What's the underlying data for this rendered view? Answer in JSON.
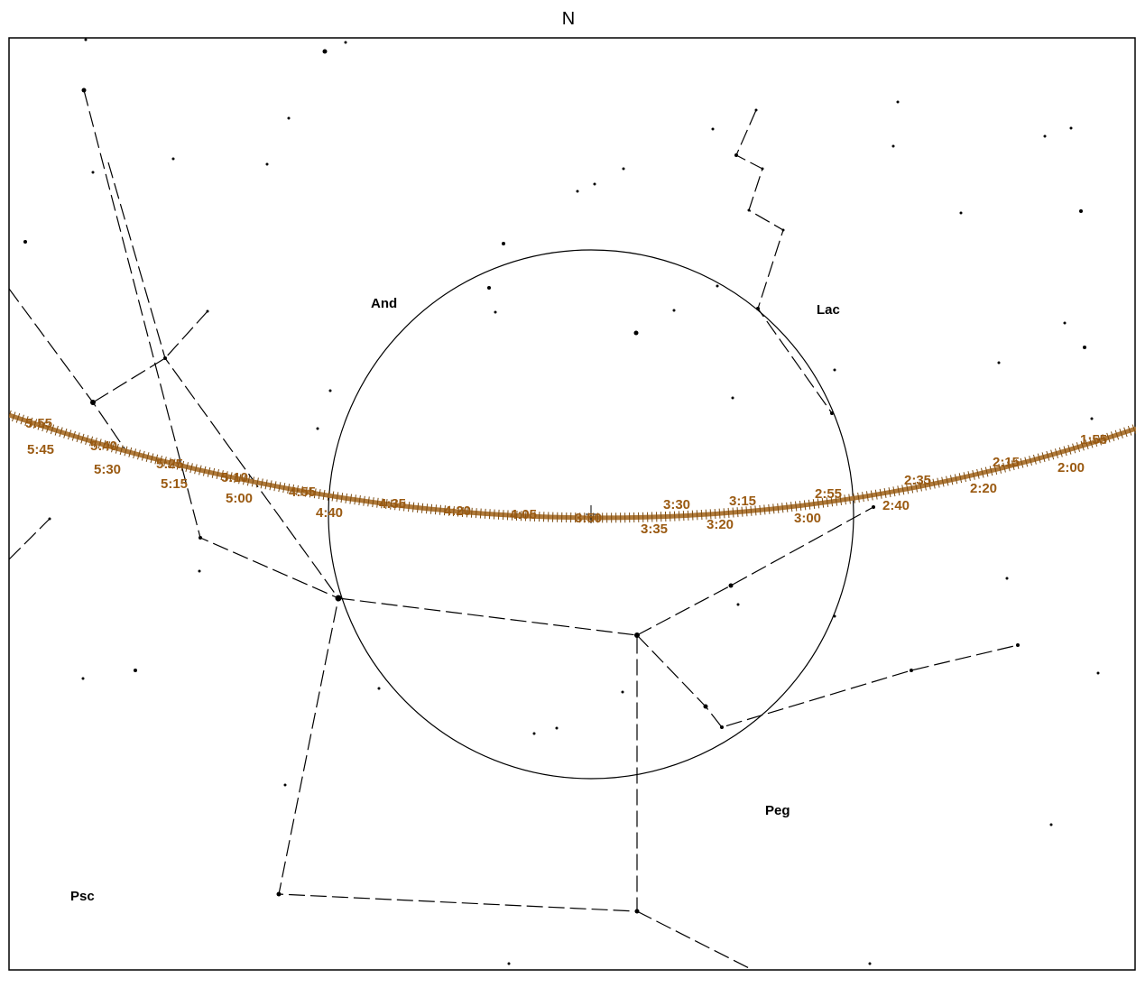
{
  "compass": "N",
  "constellations": [
    "And",
    "Lac",
    "Peg",
    "Psc"
  ],
  "track_labels": [
    "5:55",
    "5:40",
    "5:25",
    "5:10",
    "4:55",
    "4:35",
    "4:20",
    "4:05",
    "3:50",
    "3:30",
    "3:15",
    "2:55",
    "2:35",
    "2:15",
    "1:55",
    "5:45",
    "5:30",
    "5:15",
    "5:00",
    "4:40",
    "3:35",
    "3:20",
    "3:00",
    "2:40",
    "2:20",
    "2:00"
  ]
}
